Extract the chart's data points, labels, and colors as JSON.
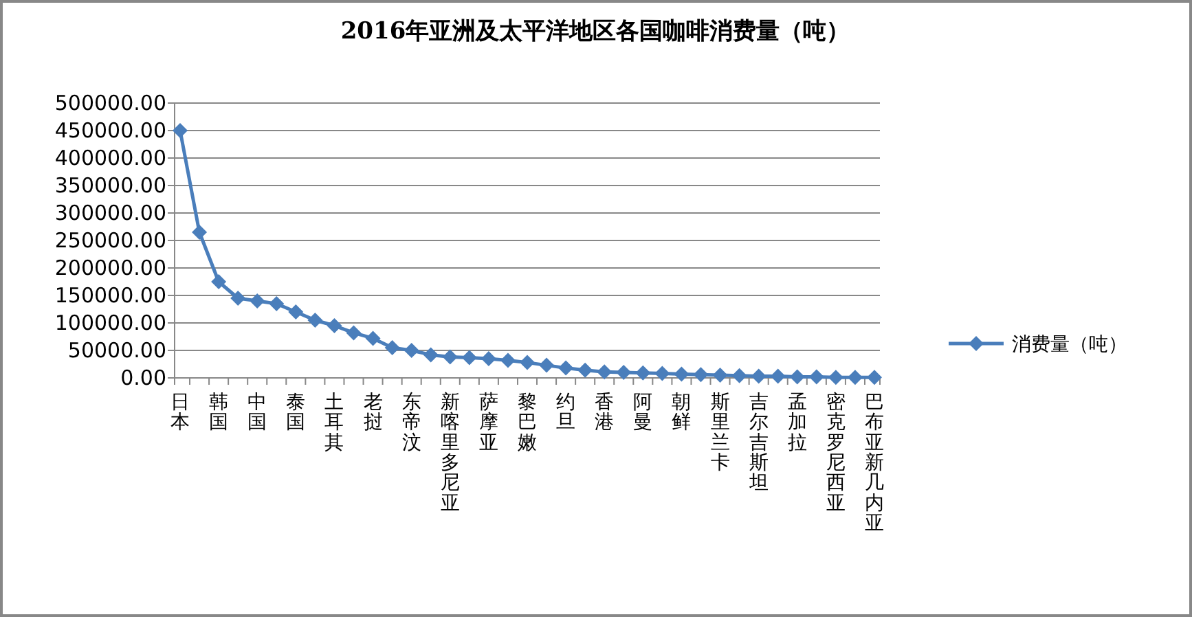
{
  "chart_data": {
    "type": "line",
    "title": "2016年亚洲及太平洋地区各国咖啡消费量（吨）",
    "categories": [
      "日本",
      null,
      "韩国",
      null,
      "中国",
      null,
      "泰国",
      null,
      "土耳其",
      null,
      "老挝",
      null,
      "东帝汶",
      null,
      "新喀里多尼亚",
      null,
      "萨摩亚",
      null,
      "黎巴嫩",
      null,
      "约旦",
      null,
      "香港",
      null,
      "阿曼",
      null,
      "朝鲜",
      null,
      "斯里兰卡",
      null,
      "吉尔吉斯坦",
      null,
      "孟加拉",
      null,
      "密克罗尼西亚",
      null,
      "巴布亚新几内亚"
    ],
    "series": [
      {
        "name": "消费量（吨）",
        "color": "#4a7ebb",
        "values": [
          450000,
          265000,
          175000,
          145000,
          140000,
          135000,
          120000,
          105000,
          95000,
          82000,
          72000,
          55000,
          50000,
          42000,
          38000,
          37000,
          35000,
          32000,
          28000,
          23000,
          18000,
          14000,
          11000,
          10000,
          9000,
          8000,
          7000,
          6000,
          5000,
          4000,
          3000,
          3000,
          2000,
          2000,
          1000,
          1000,
          1000
        ]
      }
    ],
    "ylim": [
      0,
      500000
    ],
    "yticks": [
      {
        "value": 0,
        "label": "0.00"
      },
      {
        "value": 50000,
        "label": "50000.00"
      },
      {
        "value": 100000,
        "label": "100000.00"
      },
      {
        "value": 150000,
        "label": "150000.00"
      },
      {
        "value": 200000,
        "label": "200000.00"
      },
      {
        "value": 250000,
        "label": "250000.00"
      },
      {
        "value": 300000,
        "label": "300000.00"
      },
      {
        "value": 350000,
        "label": "350000.00"
      },
      {
        "value": 400000,
        "label": "400000.00"
      },
      {
        "value": 450000,
        "label": "450000.00"
      },
      {
        "value": 500000,
        "label": "500000.00"
      }
    ],
    "grid": "y",
    "legend": "right",
    "marker": "diamond",
    "line_style": "solid"
  }
}
